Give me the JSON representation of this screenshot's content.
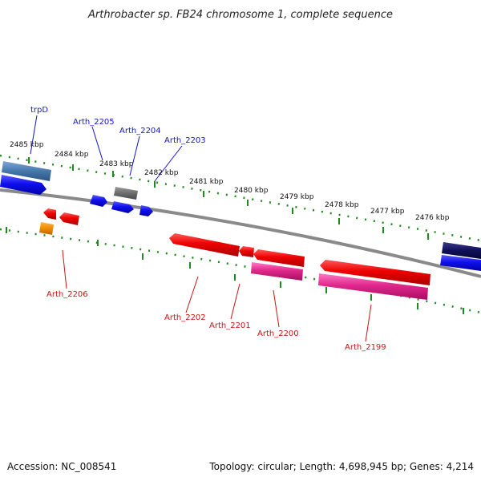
{
  "title": "Arthrobacter sp. FB24 chromosome 1, complete sequence",
  "footer": {
    "accession": "Accession: NC_008541",
    "summary": "Topology: circular; Length: 4,698,945 bp; Genes: 4,214"
  },
  "ticks": [
    "2485 kbp",
    "2484 kbp",
    "2483 kbp",
    "2482 kbp",
    "2481 kbp",
    "2480 kbp",
    "2479 kbp",
    "2478 kbp",
    "2477 kbp",
    "2476 kbp"
  ],
  "labels": {
    "trpD": "trpD",
    "arth2205": "Arth_2205",
    "arth2204": "Arth_2204",
    "arth2203": "Arth_2203",
    "arth2206": "Arth_2206",
    "arth2202": "Arth_2202",
    "arth2201": "Arth_2201",
    "arth2200": "Arth_2200",
    "arth2199": "Arth_2199"
  },
  "colors": {
    "forward_label": "#1414c8",
    "reverse_label": "#c81414",
    "tick_green": "#1f8a1f",
    "backbone": "#8a8a8a"
  }
}
